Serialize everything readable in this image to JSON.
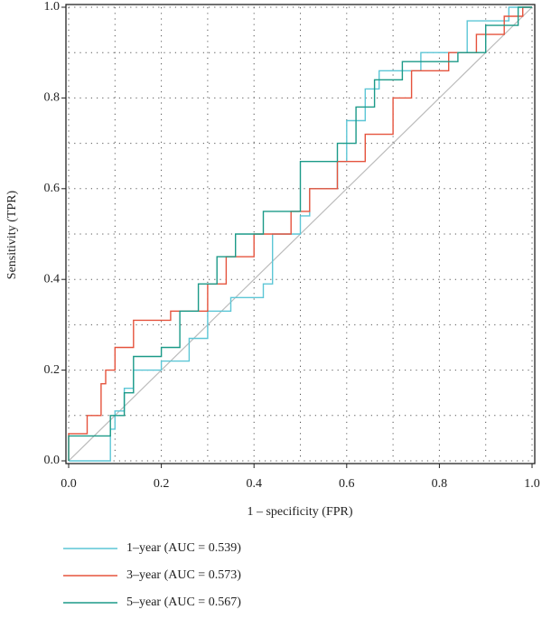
{
  "chart_data": {
    "type": "line",
    "xlabel": "1 – specificity (FPR)",
    "ylabel": "Sensitivity (TPR)",
    "xlim": [
      0,
      1
    ],
    "ylim": [
      0,
      1
    ],
    "xticks": [
      {
        "value": 0,
        "label": "0.0"
      },
      0.2,
      0.4,
      0.6,
      0.8,
      {
        "value": 1,
        "label": "1.0"
      }
    ],
    "yticks": [
      {
        "value": 0,
        "label": "0.0"
      },
      0.2,
      0.4,
      0.6,
      0.8,
      {
        "value": 1,
        "label": "1.0"
      }
    ],
    "minor_ticks": [
      0.1,
      0.3,
      0.5,
      0.7,
      0.9
    ],
    "grid": true,
    "legend": "bottom",
    "series": [
      {
        "name": "1–year (AUC = 0.539)",
        "color": "#5cc6d6",
        "x": [
          0,
          0.09,
          0.09,
          0.1,
          0.1,
          0.12,
          0.12,
          0.14,
          0.14,
          0.2,
          0.2,
          0.26,
          0.26,
          0.3,
          0.3,
          0.35,
          0.35,
          0.42,
          0.42,
          0.44,
          0.44,
          0.5,
          0.5,
          0.52,
          0.52,
          0.58,
          0.58,
          0.6,
          0.6,
          0.64,
          0.64,
          0.67,
          0.67,
          0.76,
          0.76,
          0.86,
          0.86,
          0.95,
          0.95,
          1
        ],
        "values": [
          0,
          0,
          0.07,
          0.07,
          0.11,
          0.11,
          0.16,
          0.16,
          0.2,
          0.2,
          0.22,
          0.22,
          0.27,
          0.27,
          0.33,
          0.33,
          0.36,
          0.36,
          0.39,
          0.39,
          0.5,
          0.5,
          0.54,
          0.54,
          0.6,
          0.6,
          0.66,
          0.66,
          0.75,
          0.75,
          0.82,
          0.82,
          0.86,
          0.86,
          0.9,
          0.9,
          0.97,
          0.97,
          1,
          1
        ]
      },
      {
        "name": "3–year (AUC = 0.573)",
        "color": "#e5533d",
        "x": [
          0,
          0,
          0.04,
          0.04,
          0.07,
          0.07,
          0.08,
          0.08,
          0.1,
          0.1,
          0.14,
          0.14,
          0.22,
          0.22,
          0.3,
          0.3,
          0.34,
          0.34,
          0.4,
          0.4,
          0.48,
          0.48,
          0.52,
          0.52,
          0.58,
          0.58,
          0.64,
          0.64,
          0.7,
          0.7,
          0.74,
          0.74,
          0.82,
          0.82,
          0.88,
          0.88,
          0.94,
          0.94,
          0.98,
          0.98,
          1
        ],
        "values": [
          0,
          0.06,
          0.06,
          0.1,
          0.1,
          0.17,
          0.17,
          0.2,
          0.2,
          0.25,
          0.25,
          0.31,
          0.31,
          0.33,
          0.33,
          0.39,
          0.39,
          0.45,
          0.45,
          0.5,
          0.5,
          0.55,
          0.55,
          0.6,
          0.6,
          0.66,
          0.66,
          0.72,
          0.72,
          0.8,
          0.8,
          0.86,
          0.86,
          0.9,
          0.9,
          0.94,
          0.94,
          0.98,
          0.98,
          1,
          1
        ]
      },
      {
        "name": "5–year (AUC = 0.567)",
        "color": "#1b9a88",
        "x": [
          0,
          0,
          0.09,
          0.09,
          0.12,
          0.12,
          0.14,
          0.14,
          0.2,
          0.2,
          0.24,
          0.24,
          0.28,
          0.28,
          0.32,
          0.32,
          0.36,
          0.36,
          0.42,
          0.42,
          0.5,
          0.5,
          0.58,
          0.58,
          0.62,
          0.62,
          0.66,
          0.66,
          0.72,
          0.72,
          0.84,
          0.84,
          0.9,
          0.9,
          0.97,
          0.97,
          1
        ],
        "values": [
          0,
          0.055,
          0.055,
          0.1,
          0.1,
          0.15,
          0.15,
          0.23,
          0.23,
          0.25,
          0.25,
          0.33,
          0.33,
          0.39,
          0.39,
          0.45,
          0.45,
          0.5,
          0.5,
          0.55,
          0.55,
          0.66,
          0.66,
          0.7,
          0.7,
          0.78,
          0.78,
          0.84,
          0.84,
          0.88,
          0.88,
          0.9,
          0.9,
          0.96,
          0.96,
          1,
          1
        ]
      }
    ]
  }
}
